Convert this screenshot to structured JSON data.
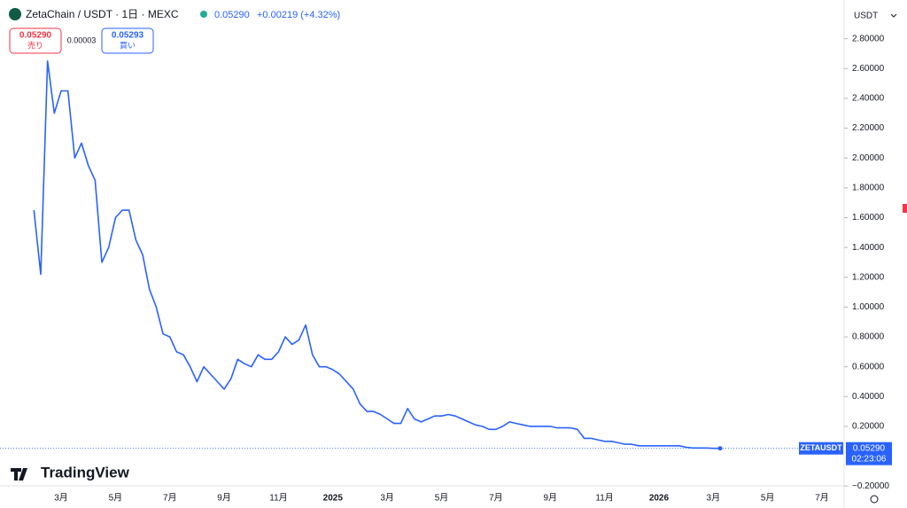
{
  "ui": {
    "symbol": "ZetaChain / USDT · 1日 · MEXC",
    "price": "0.05290",
    "change": "+0.00219 (+4.32%)",
    "sell_price": "0.05290",
    "sell_label": "売り",
    "spread": "0.00003",
    "buy_price": "0.05293",
    "buy_label": "買い",
    "currency": "USDT",
    "last_symbol": "ZETAUSDT",
    "last_price": "0.05290",
    "countdown": "02:23:06",
    "logo": "TradingView"
  },
  "chart_data": {
    "type": "line",
    "categories": [
      null,
      null,
      null,
      null,
      "3月",
      null,
      null,
      null,
      null,
      null,
      null,
      null,
      "5月",
      null,
      null,
      null,
      null,
      null,
      null,
      null,
      "7月",
      null,
      null,
      null,
      null,
      null,
      null,
      null,
      "9月",
      null,
      null,
      null,
      null,
      null,
      null,
      null,
      "11月",
      null,
      null,
      null,
      null,
      null,
      null,
      null,
      "2025",
      null,
      null,
      null,
      null,
      null,
      null,
      null,
      "3月",
      null,
      null,
      null,
      null,
      null,
      null,
      null,
      "5月",
      null,
      null,
      null,
      null,
      null,
      null,
      null,
      "7月",
      null,
      null,
      null,
      null,
      null,
      null,
      null,
      "9月",
      null,
      null,
      null,
      null,
      null,
      null,
      null,
      "11月",
      null,
      null,
      null,
      null,
      null,
      null,
      null,
      "2026",
      null,
      null,
      null,
      null,
      null,
      null,
      null,
      "3月",
      null,
      null,
      null,
      null,
      null,
      null,
      null,
      "5月",
      null,
      null,
      null,
      null,
      null,
      null,
      null,
      "7月",
      null,
      null
    ],
    "series": [
      {
        "name": "ZETAUSDT",
        "color": "#2962ff",
        "values": [
          1.65,
          1.22,
          2.65,
          2.3,
          2.45,
          2.45,
          2.0,
          2.1,
          1.95,
          1.85,
          1.3,
          1.4,
          1.6,
          1.65,
          1.65,
          1.45,
          1.35,
          1.12,
          1.0,
          0.82,
          0.8,
          0.7,
          0.68,
          0.6,
          0.5,
          0.6,
          0.55,
          0.5,
          0.45,
          0.52,
          0.65,
          0.62,
          0.6,
          0.68,
          0.65,
          0.65,
          0.7,
          0.8,
          0.75,
          0.78,
          0.88,
          0.68,
          0.6,
          0.6,
          0.58,
          0.55,
          0.5,
          0.45,
          0.35,
          0.3,
          0.3,
          0.28,
          0.25,
          0.22,
          0.22,
          0.32,
          0.25,
          0.23,
          0.25,
          0.27,
          0.27,
          0.28,
          0.27,
          0.25,
          0.23,
          0.21,
          0.2,
          0.18,
          0.18,
          0.2,
          0.23,
          0.22,
          0.21,
          0.2,
          0.2,
          0.2,
          0.2,
          0.19,
          0.19,
          0.19,
          0.18,
          0.12,
          0.12,
          0.11,
          0.1,
          0.1,
          0.09,
          0.08,
          0.08,
          0.07,
          0.07,
          0.07,
          0.07,
          0.07,
          0.07,
          0.07,
          0.06,
          0.055,
          0.055,
          0.055,
          0.053,
          0.0529,
          null,
          null,
          null,
          null,
          null,
          null,
          null,
          null,
          null,
          null,
          null,
          null,
          null,
          null,
          null,
          null,
          null
        ]
      }
    ],
    "ylim": [
      -0.27,
      3.0
    ],
    "yticks": [
      {
        "value": 2.8,
        "label": "2.80000"
      },
      {
        "value": 2.6,
        "label": "2.60000"
      },
      {
        "value": 2.4,
        "label": "2.40000"
      },
      {
        "value": 2.2,
        "label": "2.20000"
      },
      {
        "value": 2.0,
        "label": "2.00000"
      },
      {
        "value": 1.8,
        "label": "1.80000"
      },
      {
        "value": 1.6,
        "label": "1.60000"
      },
      {
        "value": 1.4,
        "label": "1.40000"
      },
      {
        "value": 1.2,
        "label": "1.20000"
      },
      {
        "value": 1.0,
        "label": "1.00000"
      },
      {
        "value": 0.8,
        "label": "0.80000"
      },
      {
        "value": 0.6,
        "label": "0.60000"
      },
      {
        "value": 0.4,
        "label": "0.40000"
      },
      {
        "value": 0.2,
        "label": "0.20000"
      },
      {
        "value": -0.2,
        "label": "−0.20000"
      }
    ],
    "grid": false
  }
}
